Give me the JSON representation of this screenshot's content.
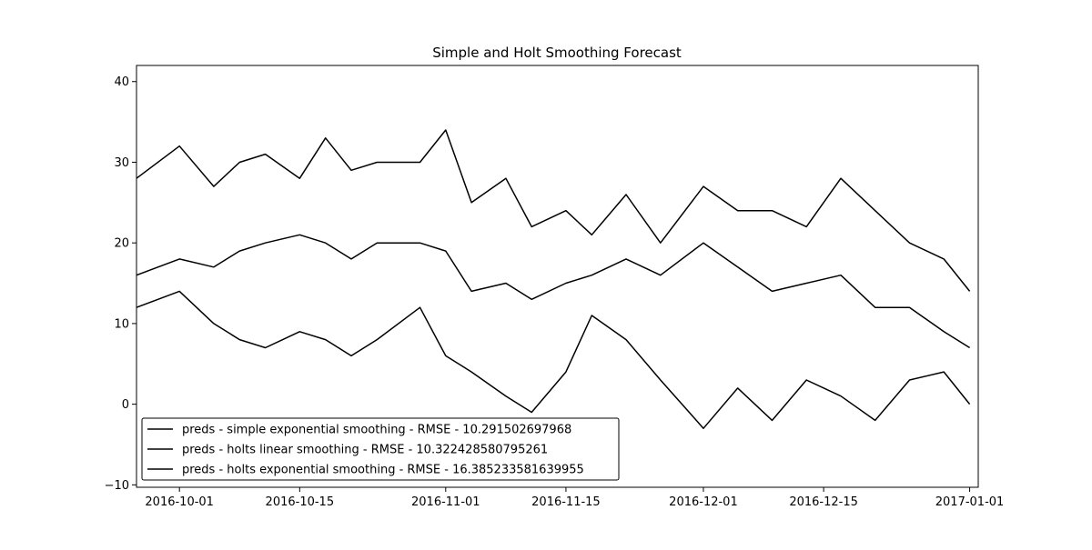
{
  "chart_data": {
    "type": "line",
    "title": "Simple and Holt Smoothing Forecast",
    "xlabel": "",
    "ylabel": "",
    "x_range": [
      "2016-09-26",
      "2017-01-02"
    ],
    "ylim": [
      -10.3,
      42
    ],
    "x_ticks": [
      "2016-10-01",
      "2016-10-15",
      "2016-11-01",
      "2016-11-15",
      "2016-12-01",
      "2016-12-15",
      "2017-01-01"
    ],
    "y_ticks": [
      -10,
      0,
      10,
      20,
      30,
      40
    ],
    "grid": false,
    "legend_position": "lower-left",
    "x": [
      "2016-09-26",
      "2016-10-01",
      "2016-10-05",
      "2016-10-08",
      "2016-10-11",
      "2016-10-15",
      "2016-10-18",
      "2016-10-21",
      "2016-10-24",
      "2016-10-29",
      "2016-11-01",
      "2016-11-04",
      "2016-11-08",
      "2016-11-11",
      "2016-11-15",
      "2016-11-18",
      "2016-11-22",
      "2016-11-26",
      "2016-12-01",
      "2016-12-05",
      "2016-12-09",
      "2016-12-13",
      "2016-12-17",
      "2016-12-21",
      "2016-12-25",
      "2016-12-29",
      "2017-01-01"
    ],
    "series": [
      {
        "name": "preds - simple exponential smoothing - RMSE - 10.291502697968",
        "values": [
          28,
          32,
          27,
          30,
          31,
          28,
          33,
          29,
          30,
          30,
          34,
          25,
          28,
          22,
          24,
          21,
          26,
          20,
          27,
          24,
          24,
          22,
          28,
          24,
          20,
          18,
          14
        ]
      },
      {
        "name": "preds - holts linear smoothing - RMSE - 10.322428580795261",
        "values": [
          16,
          18,
          17,
          19,
          20,
          21,
          20,
          18,
          20,
          20,
          19,
          14,
          15,
          13,
          15,
          16,
          18,
          16,
          20,
          17,
          14,
          15,
          16,
          12,
          12,
          9,
          7
        ]
      },
      {
        "name": "preds - holts exponential smoothing - RMSE - 16.385233581639955",
        "values": [
          12,
          14,
          10,
          8,
          7,
          9,
          8,
          6,
          8,
          12,
          6,
          4,
          1,
          -1,
          4,
          11,
          8,
          3,
          -3,
          2,
          -2,
          3,
          1,
          -2,
          3,
          4,
          0
        ]
      }
    ]
  }
}
